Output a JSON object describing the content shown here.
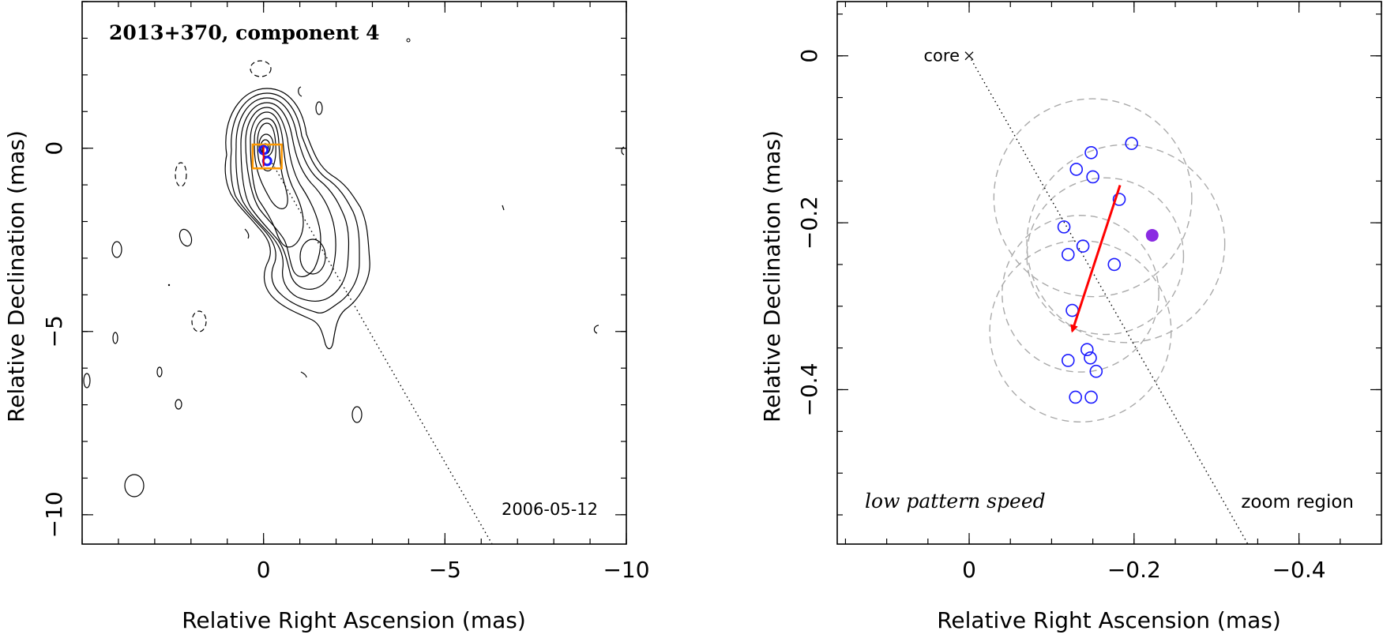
{
  "chart_data": [
    {
      "type": "contour",
      "title": "2013+370, component 4",
      "date_label": "2006-05-12",
      "xlabel": "Relative Right Ascension (mas)",
      "ylabel": "Relative Declination (mas)",
      "xlim": [
        5.0,
        -10.0
      ],
      "ylim": [
        -10.8,
        4.0
      ],
      "xticks": [
        0,
        -5,
        -10
      ],
      "xtick_labels": [
        "0",
        "−5",
        "−10"
      ],
      "yticks": [
        0,
        -5,
        -10
      ],
      "ytick_labels": [
        "0",
        "−5",
        "−10"
      ],
      "components": [
        {
          "x": 0.0,
          "y": -0.05,
          "color": "#1a1aff"
        },
        {
          "x": -0.1,
          "y": -0.35,
          "color": "#1a1aff"
        }
      ],
      "zoom_box": {
        "x_range": [
          0.3,
          -0.5
        ],
        "y_range": [
          0.1,
          -0.55
        ],
        "color": "#ff9900"
      },
      "jet_axis": {
        "from": [
          0.0,
          0.0
        ],
        "to": [
          -6.3,
          -10.8
        ]
      },
      "colors": {
        "box": "#ff9900",
        "component": "#1a1aff",
        "red_marker": "#ff0000"
      }
    },
    {
      "type": "scatter",
      "annotation": "low pattern speed",
      "region_label": "zoom region",
      "core_label": "core",
      "xlabel": "Relative Right Ascension (mas)",
      "ylabel": "Relative Declination (mas)",
      "xlim": [
        0.16,
        -0.5
      ],
      "ylim": [
        -0.585,
        0.065
      ],
      "xticks": [
        0,
        -0.2,
        -0.4
      ],
      "xtick_labels": [
        "0",
        "−0.2",
        "−0.4"
      ],
      "yticks": [
        0,
        -0.2,
        -0.4
      ],
      "ytick_labels": [
        "0",
        "−0.2",
        "−0.4"
      ],
      "core": {
        "x": 0.0,
        "y": 0.0
      },
      "positions": [
        {
          "x": -0.197,
          "y": -0.105
        },
        {
          "x": -0.148,
          "y": -0.116
        },
        {
          "x": -0.13,
          "y": -0.136
        },
        {
          "x": -0.15,
          "y": -0.145
        },
        {
          "x": -0.182,
          "y": -0.172
        },
        {
          "x": -0.115,
          "y": -0.205
        },
        {
          "x": -0.138,
          "y": -0.228
        },
        {
          "x": -0.12,
          "y": -0.238
        },
        {
          "x": -0.176,
          "y": -0.25
        },
        {
          "x": -0.125,
          "y": -0.305
        },
        {
          "x": -0.143,
          "y": -0.352
        },
        {
          "x": -0.147,
          "y": -0.362
        },
        {
          "x": -0.12,
          "y": -0.365
        },
        {
          "x": -0.154,
          "y": -0.378
        },
        {
          "x": -0.129,
          "y": -0.409
        },
        {
          "x": -0.148,
          "y": -0.409
        }
      ],
      "mean_position": {
        "x": -0.222,
        "y": -0.215,
        "color": "#8a2be2"
      },
      "motion_arrow": {
        "from": [
          -0.183,
          -0.155
        ],
        "to": [
          -0.125,
          -0.33
        ],
        "color": "#ff0000"
      },
      "uncertainty_circles": [
        {
          "x": -0.15,
          "y": -0.17,
          "r": 0.12
        },
        {
          "x": -0.19,
          "y": -0.225,
          "r": 0.12
        },
        {
          "x": -0.135,
          "y": -0.285,
          "r": 0.095
        },
        {
          "x": -0.165,
          "y": -0.24,
          "r": 0.095
        },
        {
          "x": -0.135,
          "y": -0.33,
          "r": 0.11
        }
      ],
      "jet_axis": {
        "from": [
          0.0,
          0.0
        ],
        "to": [
          -0.338,
          -0.585
        ]
      },
      "colors": {
        "points": "#1a1aff",
        "circles": "#aaaaaa",
        "arrow": "#ff0000"
      }
    }
  ]
}
